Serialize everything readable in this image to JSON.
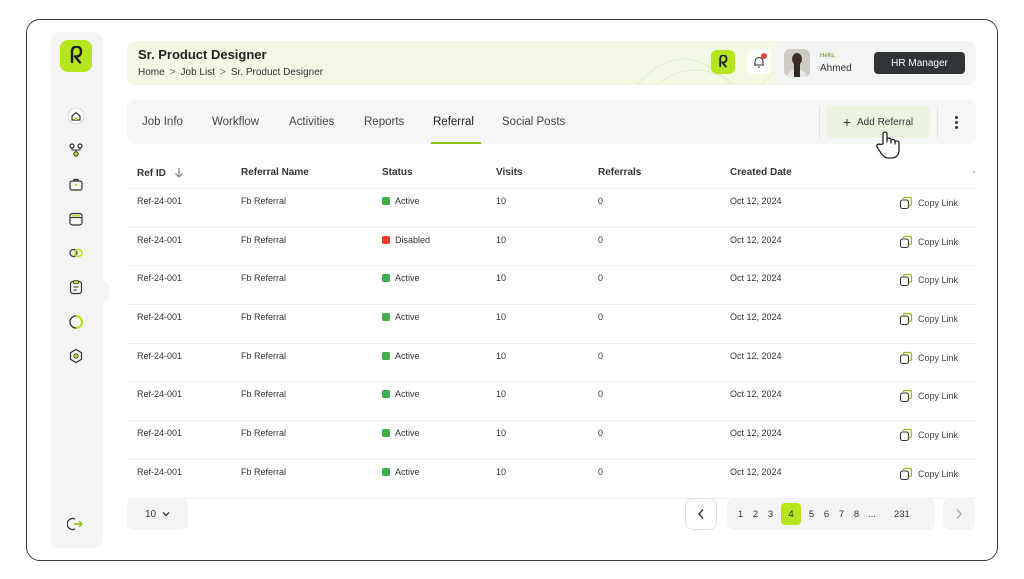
{
  "app": {
    "logo_letter": "R",
    "accent_color": "#b5e61d"
  },
  "sidebar": {
    "items": [
      {
        "icon": "home-icon"
      },
      {
        "icon": "org-chart-icon"
      },
      {
        "icon": "briefcase-icon"
      },
      {
        "icon": "calendar-icon"
      },
      {
        "icon": "link-icon"
      },
      {
        "icon": "clipboard-icon"
      },
      {
        "icon": "progress-ring-icon"
      },
      {
        "icon": "settings-hexagon-icon"
      }
    ],
    "logout_icon": "logout-icon"
  },
  "header": {
    "title": "Sr. Product Designer",
    "breadcrumb": [
      "Home",
      "Job List",
      "Sr. Product Designer"
    ],
    "breadcrumb_sep": ">"
  },
  "user": {
    "greeting": "Hello,",
    "name": "Ahmed",
    "role": "HR Manager"
  },
  "tabs": {
    "items": [
      "Job Info",
      "Workflow",
      "Activities",
      "Reports",
      "Referral",
      "Social Posts"
    ],
    "active": "Referral",
    "add_button": "Add Referral",
    "add_icon": "+"
  },
  "table": {
    "columns": {
      "ref_id": "Ref ID",
      "name": "Referral Name",
      "status": "Status",
      "visits": "Visits",
      "referrals": "Referrals",
      "created": "Created Date",
      "actions": "-"
    },
    "status_colors": {
      "Active": "#3fae49",
      "Disabled": "#ef3b2d"
    },
    "action_label": "Copy Link",
    "rows": [
      {
        "ref_id": "Ref-24-001",
        "name": "Fb Referral",
        "status": "Active",
        "visits": "10",
        "referrals": "0",
        "created": "Oct 12, 2024"
      },
      {
        "ref_id": "Ref-24-001",
        "name": "Fb Referral",
        "status": "Disabled",
        "visits": "10",
        "referrals": "0",
        "created": "Oct 12, 2024"
      },
      {
        "ref_id": "Ref-24-001",
        "name": "Fb Referral",
        "status": "Active",
        "visits": "10",
        "referrals": "0",
        "created": "Oct 12, 2024"
      },
      {
        "ref_id": "Ref-24-001",
        "name": "Fb Referral",
        "status": "Active",
        "visits": "10",
        "referrals": "0",
        "created": "Oct 12, 2024"
      },
      {
        "ref_id": "Ref-24-001",
        "name": "Fb Referral",
        "status": "Active",
        "visits": "10",
        "referrals": "0",
        "created": "Oct 12, 2024"
      },
      {
        "ref_id": "Ref-24-001",
        "name": "Fb Referral",
        "status": "Active",
        "visits": "10",
        "referrals": "0",
        "created": "Oct 12, 2024"
      },
      {
        "ref_id": "Ref-24-001",
        "name": "Fb Referral",
        "status": "Active",
        "visits": "10",
        "referrals": "0",
        "created": "Oct 12, 2024"
      },
      {
        "ref_id": "Ref-24-001",
        "name": "Fb Referral",
        "status": "Active",
        "visits": "10",
        "referrals": "0",
        "created": "Oct 12, 2024"
      }
    ]
  },
  "pagination": {
    "per_page": "10",
    "pages": [
      "1",
      "2",
      "3",
      "4",
      "5",
      "6",
      "7",
      "8",
      "...",
      "231"
    ],
    "current": "4"
  }
}
